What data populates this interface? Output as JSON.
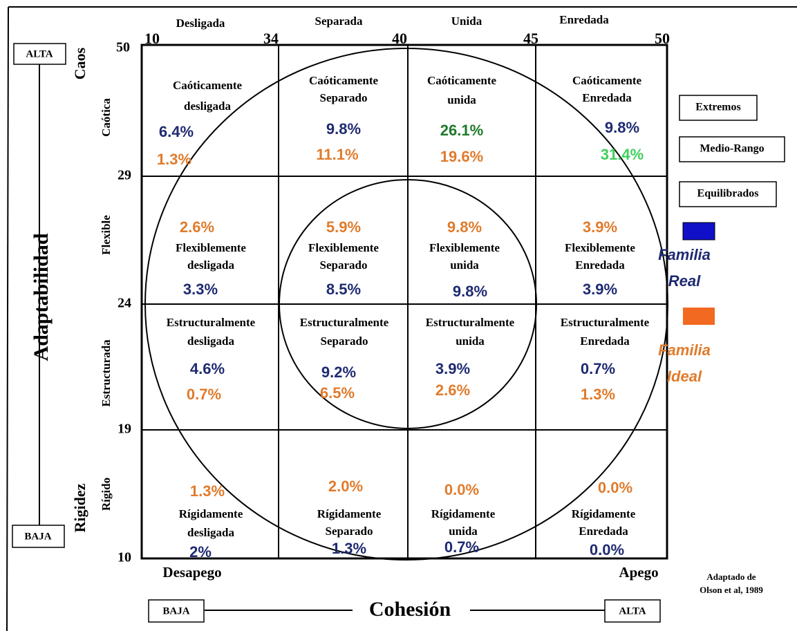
{
  "top_labels": [
    "Desligada",
    "Separada",
    "Unida",
    "Enredada"
  ],
  "x_ticks": [
    "10",
    "34",
    "40",
    "45",
    "50"
  ],
  "y_ticks": [
    "50",
    "29",
    "24",
    "19",
    "10"
  ],
  "row_labels": [
    "Caótica",
    "Flexible",
    "Estructurada",
    "Rígido"
  ],
  "y_axis": {
    "title": "Adaptabilidad",
    "high_extreme": "Caos",
    "low_extreme": "Rigidez",
    "high": "ALTA",
    "low": "BAJA"
  },
  "x_axis": {
    "title": "Cohesión",
    "left": "Desapego",
    "right": "Apego",
    "low": "BAJA",
    "high": "ALTA"
  },
  "legend": {
    "levels": [
      "Extremos",
      "Medio-Rango",
      "Equilibrados"
    ],
    "series": [
      {
        "name": [
          "Familia",
          "Real"
        ]
      },
      {
        "name": [
          "Familia",
          "Ideal"
        ]
      }
    ]
  },
  "source": [
    "Adaptado de",
    "Olson et al, 1989"
  ],
  "cells": [
    {
      "title": [
        "Caóticamente",
        "desligada"
      ],
      "real": "6.4%",
      "ideal": "1.3%"
    },
    {
      "title": [
        "Caóticamente",
        "Separado"
      ],
      "real": "9.8%",
      "ideal": "11.1%"
    },
    {
      "title": [
        "Caóticamente",
        "unida"
      ],
      "real": "26.1%",
      "ideal": "19.6%"
    },
    {
      "title": [
        "Caóticamente",
        "Enredada"
      ],
      "real": "9.8%",
      "ideal": "31.4%"
    },
    {
      "title": [
        "Flexiblemente",
        "desligada"
      ],
      "real": "3.3%",
      "ideal": "2.6%"
    },
    {
      "title": [
        "Flexiblemente",
        "Separado"
      ],
      "real": "8.5%",
      "ideal": "5.9%"
    },
    {
      "title": [
        "Flexiblemente",
        "unida"
      ],
      "real": "9.8%",
      "ideal": "9.8%"
    },
    {
      "title": [
        "Flexiblemente",
        "Enredada"
      ],
      "real": "3.9%",
      "ideal": "3.9%"
    },
    {
      "title": [
        "Estructuralmente",
        "desligada"
      ],
      "real": "4.6%",
      "ideal": "0.7%"
    },
    {
      "title": [
        "Estructuralmente",
        "Separado"
      ],
      "real": "9.2%",
      "ideal": "6.5%"
    },
    {
      "title": [
        "Estructuralmente",
        "unida"
      ],
      "real": "3.9%",
      "ideal": "2.6%"
    },
    {
      "title": [
        "Estructuralmente",
        "Enredada"
      ],
      "real": "0.7%",
      "ideal": "1.3%"
    },
    {
      "title": [
        "Rígidamente",
        "desligada"
      ],
      "real": "2%",
      "ideal": "1.3%"
    },
    {
      "title": [
        "Rígidamente",
        "Separado"
      ],
      "real": "1.3%",
      "ideal": "2.0%"
    },
    {
      "title": [
        "Rígidamente",
        "unida"
      ],
      "real": "0.7%",
      "ideal": "0.0%"
    },
    {
      "title": [
        "Rígidamente",
        "Enredada"
      ],
      "real": "0.0%",
      "ideal": "0.0%"
    }
  ]
}
